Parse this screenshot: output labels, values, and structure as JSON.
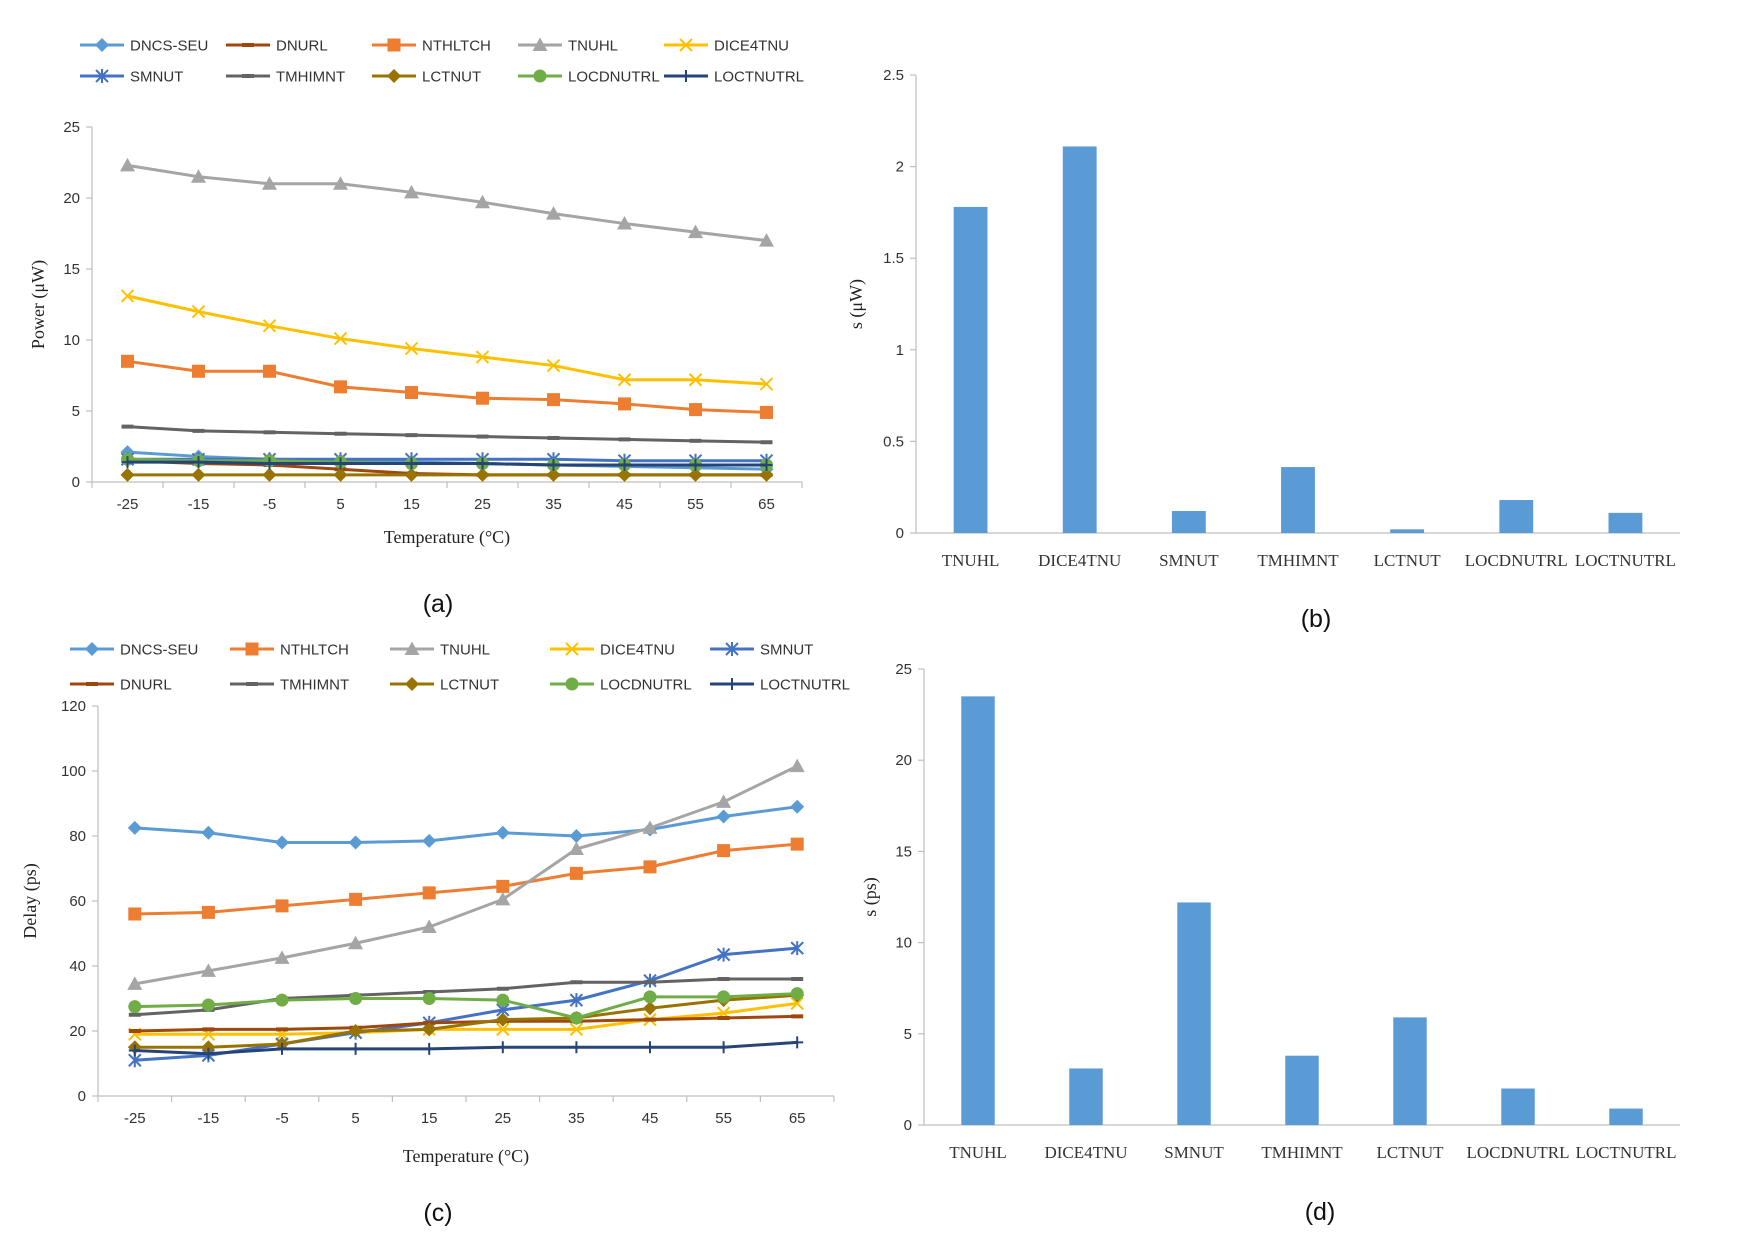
{
  "colors": {
    "DNCS-SEU": "#5b9bd5",
    "DNURL": "#9e480e",
    "NTHLTCH": "#ed7d31",
    "TNUHL": "#a5a5a5",
    "DICE4TNU": "#ffc000",
    "SMNUT": "#4472c4",
    "TMHIMNT": "#636363",
    "LCTNUT": "#997300",
    "LOCDNUTRL": "#70ad47",
    "LOCTNUTRL": "#264478",
    "bar": "#5b9bd5",
    "axis": "#bfbfbf"
  },
  "chart_data": [
    {
      "id": "a",
      "panel_label": "(a)",
      "type": "line",
      "xlabel": "Temperature (°C)",
      "ylabel": "Power (μW)",
      "ylim": [
        0,
        25
      ],
      "yticks": [
        "0",
        "5",
        "10",
        "15",
        "20",
        "25"
      ],
      "categories": [
        "-25",
        "-15",
        "-5",
        "5",
        "15",
        "25",
        "35",
        "45",
        "55",
        "65"
      ],
      "legend_rows": [
        [
          "DNCS-SEU",
          "DNURL",
          "NTHLTCH",
          "TNUHL",
          "DICE4TNU"
        ],
        [
          "SMNUT",
          "TMHIMNT",
          "LCTNUT",
          "LOCDNUTRL",
          "LOCTNUTRL"
        ]
      ],
      "series": [
        {
          "name": "DNCS-SEU",
          "marker": "diamond",
          "values": [
            2.1,
            1.8,
            1.6,
            1.5,
            1.4,
            1.3,
            1.2,
            1.1,
            1.0,
            0.9
          ]
        },
        {
          "name": "DNURL",
          "marker": "dash",
          "values": [
            1.5,
            1.3,
            1.2,
            0.9,
            0.6,
            0.5,
            0.5,
            0.5,
            0.5,
            0.5
          ]
        },
        {
          "name": "NTHLTCH",
          "marker": "square",
          "values": [
            8.5,
            7.8,
            7.8,
            6.7,
            6.3,
            5.9,
            5.8,
            5.5,
            5.1,
            4.9
          ]
        },
        {
          "name": "TNUHL",
          "marker": "triangle",
          "values": [
            22.3,
            21.5,
            21.0,
            21.0,
            20.4,
            19.7,
            18.9,
            18.2,
            17.6,
            17.0
          ]
        },
        {
          "name": "DICE4TNU",
          "marker": "x",
          "values": [
            13.1,
            12.0,
            11.0,
            10.1,
            9.4,
            8.8,
            8.2,
            7.2,
            7.2,
            6.9
          ]
        },
        {
          "name": "SMNUT",
          "marker": "asterisk",
          "values": [
            1.6,
            1.6,
            1.6,
            1.6,
            1.6,
            1.6,
            1.6,
            1.5,
            1.5,
            1.5
          ]
        },
        {
          "name": "TMHIMNT",
          "marker": "dash",
          "values": [
            3.9,
            3.6,
            3.5,
            3.4,
            3.3,
            3.2,
            3.1,
            3.0,
            2.9,
            2.8
          ]
        },
        {
          "name": "LCTNUT",
          "marker": "diamond",
          "values": [
            0.5,
            0.5,
            0.5,
            0.5,
            0.5,
            0.5,
            0.5,
            0.5,
            0.5,
            0.5
          ]
        },
        {
          "name": "LOCDNUTRL",
          "marker": "circle",
          "values": [
            1.6,
            1.5,
            1.5,
            1.4,
            1.3,
            1.3,
            1.2,
            1.2,
            1.2,
            1.2
          ]
        },
        {
          "name": "LOCTNUTRL",
          "marker": "plus",
          "values": [
            1.4,
            1.4,
            1.3,
            1.3,
            1.3,
            1.3,
            1.2,
            1.2,
            1.2,
            1.2
          ]
        }
      ]
    },
    {
      "id": "b",
      "panel_label": "(b)",
      "type": "bar",
      "xlabel": "",
      "ylabel": "s (μW)",
      "ylim": [
        0,
        2.5
      ],
      "yticks": [
        "0",
        "0.5",
        "1",
        "1.5",
        "2",
        "2.5"
      ],
      "categories": [
        "TNUHL",
        "DICE4TNU",
        "SMNUT",
        "TMHIMNT",
        "LCTNUT",
        "LOCDNUTRL",
        "LOCTNUTRL"
      ],
      "values": [
        1.78,
        2.11,
        0.12,
        0.36,
        0.02,
        0.18,
        0.11
      ]
    },
    {
      "id": "c",
      "panel_label": "(c)",
      "type": "line",
      "xlabel": "Temperature (°C)",
      "ylabel": "Delay (ps)",
      "ylim": [
        0,
        120
      ],
      "yticks": [
        "0",
        "20",
        "40",
        "60",
        "80",
        "100",
        "120"
      ],
      "categories": [
        "-25",
        "-15",
        "-5",
        "5",
        "15",
        "25",
        "35",
        "45",
        "55",
        "65"
      ],
      "legend_rows": [
        [
          "DNCS-SEU",
          "NTHLTCH",
          "TNUHL",
          "DICE4TNU",
          "SMNUT"
        ],
        [
          "DNURL",
          "TMHIMNT",
          "LCTNUT",
          "LOCDNUTRL",
          "LOCTNUTRL"
        ]
      ],
      "series": [
        {
          "name": "DNCS-SEU",
          "marker": "diamond",
          "values": [
            82.5,
            81,
            78,
            78,
            78.5,
            81,
            80,
            82,
            86,
            89
          ]
        },
        {
          "name": "NTHLTCH",
          "marker": "square",
          "values": [
            56,
            56.5,
            58.5,
            60.5,
            62.5,
            64.5,
            68.5,
            70.5,
            75.5,
            77.5
          ]
        },
        {
          "name": "TNUHL",
          "marker": "triangle",
          "values": [
            34.5,
            38.5,
            42.5,
            47,
            52,
            60.5,
            76,
            82.5,
            90.5,
            101.5
          ]
        },
        {
          "name": "DICE4TNU",
          "marker": "x",
          "values": [
            19,
            19,
            19,
            19.5,
            20.5,
            20.5,
            20.5,
            23.5,
            25.5,
            28.5
          ]
        },
        {
          "name": "SMNUT",
          "marker": "asterisk",
          "values": [
            11,
            12.5,
            16,
            19.5,
            22.5,
            26.5,
            29.5,
            35.5,
            43.5,
            45.5
          ]
        },
        {
          "name": "DNURL",
          "marker": "dash",
          "values": [
            20,
            20.5,
            20.5,
            21,
            22.5,
            23,
            23,
            23.5,
            24,
            24.5
          ]
        },
        {
          "name": "TMHIMNT",
          "marker": "dash",
          "values": [
            25,
            26.5,
            30,
            31,
            32,
            33,
            35,
            35,
            36,
            36
          ]
        },
        {
          "name": "LCTNUT",
          "marker": "diamond",
          "values": [
            15,
            15,
            16,
            20,
            20.5,
            23.5,
            24,
            27,
            29.5,
            31
          ]
        },
        {
          "name": "LOCDNUTRL",
          "marker": "circle",
          "values": [
            27.5,
            28,
            29.5,
            30,
            30,
            29.5,
            24,
            30.5,
            30.5,
            31.5
          ]
        },
        {
          "name": "LOCTNUTRL",
          "marker": "plus",
          "values": [
            14,
            13,
            14.5,
            14.5,
            14.5,
            15,
            15,
            15,
            15,
            16.5
          ]
        }
      ]
    },
    {
      "id": "d",
      "panel_label": "(d)",
      "type": "bar",
      "xlabel": "",
      "ylabel": "s (ps)",
      "ylim": [
        0,
        25
      ],
      "yticks": [
        "0",
        "5",
        "10",
        "15",
        "20",
        "25"
      ],
      "categories": [
        "TNUHL",
        "DICE4TNU",
        "SMNUT",
        "TMHIMNT",
        "LCTNUT",
        "LOCDNUTRL",
        "LOCTNUTRL"
      ],
      "values": [
        23.5,
        3.1,
        12.2,
        3.8,
        5.9,
        2.0,
        0.9
      ]
    }
  ]
}
